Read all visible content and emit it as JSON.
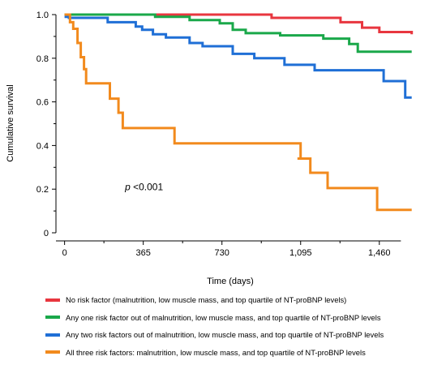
{
  "chart_data": {
    "type": "line",
    "title": "",
    "xlabel": "Time (days)",
    "ylabel": "Cumulative survival",
    "xlim": [
      -40,
      1600
    ],
    "ylim": [
      0,
      1.0
    ],
    "x_ticks": [
      0,
      365,
      730,
      1095,
      1460
    ],
    "x_tick_labels": [
      "0",
      "365",
      "730",
      "1,095",
      "1,460"
    ],
    "y_ticks": [
      0,
      0.2,
      0.4,
      0.6,
      0.8,
      1.0
    ],
    "y_tick_labels": [
      "0",
      "0.2",
      "0.4",
      "0.6",
      "0.8",
      "1.0"
    ],
    "annotation": {
      "italic": "p",
      "text": " <0.001",
      "x": 280,
      "y": 0.195
    },
    "grid": false,
    "legend_position": "below",
    "series": [
      {
        "name": "No risk factor (malnutrition, low muscle mass, and top quartile of NT-proBNP levels)",
        "color": "#e8363f",
        "steps": [
          [
            0,
            1.0
          ],
          [
            960,
            0.985
          ],
          [
            1280,
            0.965
          ],
          [
            1380,
            0.94
          ],
          [
            1460,
            0.92
          ],
          [
            1610,
            0.91
          ]
        ]
      },
      {
        "name": "Any one risk factor out of malnutrition, low muscle mass, and top quartile of NT-proBNP levels",
        "color": "#1aa84a",
        "steps": [
          [
            0,
            1.0
          ],
          [
            420,
            0.99
          ],
          [
            580,
            0.975
          ],
          [
            720,
            0.96
          ],
          [
            780,
            0.93
          ],
          [
            840,
            0.915
          ],
          [
            1000,
            0.905
          ],
          [
            1200,
            0.89
          ],
          [
            1320,
            0.865
          ],
          [
            1360,
            0.83
          ],
          [
            1610,
            0.83
          ]
        ]
      },
      {
        "name": "Any two risk factors out of malnutrition, low muscle mass, and top quartile of NT-proBNP levels",
        "color": "#1f6fd6",
        "steps": [
          [
            0,
            0.99
          ],
          [
            20,
            0.985
          ],
          [
            200,
            0.965
          ],
          [
            330,
            0.945
          ],
          [
            360,
            0.93
          ],
          [
            410,
            0.91
          ],
          [
            470,
            0.895
          ],
          [
            580,
            0.87
          ],
          [
            640,
            0.855
          ],
          [
            780,
            0.82
          ],
          [
            880,
            0.8
          ],
          [
            1020,
            0.77
          ],
          [
            1160,
            0.745
          ],
          [
            1480,
            0.695
          ],
          [
            1580,
            0.62
          ],
          [
            1610,
            0.62
          ]
        ]
      },
      {
        "name": "All three risk factors: malnutrition, low muscle mass, and top quartile of NT-proBNP levels",
        "color": "#f28a1d",
        "steps": [
          [
            0,
            1.0
          ],
          [
            25,
            0.965
          ],
          [
            40,
            0.935
          ],
          [
            60,
            0.87
          ],
          [
            75,
            0.805
          ],
          [
            90,
            0.75
          ],
          [
            100,
            0.685
          ],
          [
            210,
            0.615
          ],
          [
            250,
            0.55
          ],
          [
            270,
            0.48
          ],
          [
            510,
            0.41
          ],
          [
            1095,
            0.41
          ],
          [
            1095,
            0.34
          ],
          [
            1080,
            0.34
          ],
          [
            1140,
            0.275
          ],
          [
            1220,
            0.205
          ],
          [
            1450,
            0.105
          ],
          [
            1610,
            0.105
          ]
        ]
      }
    ]
  }
}
